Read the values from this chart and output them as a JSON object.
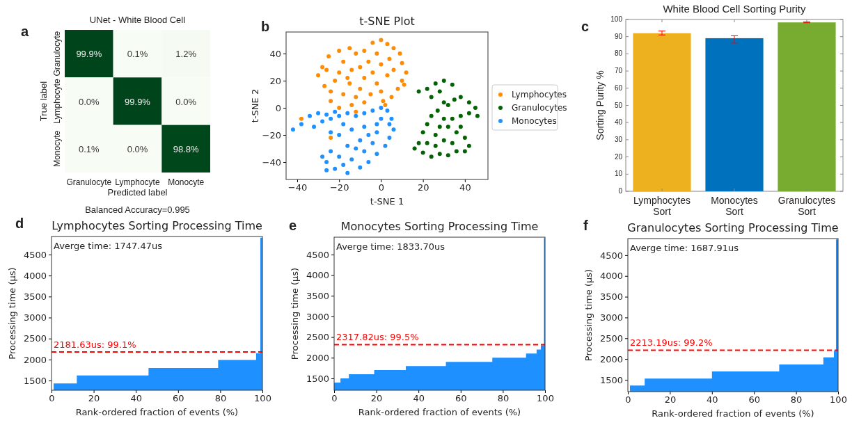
{
  "chart_data": [
    {
      "type": "heatmap",
      "title": "UNet - White Blood Cell",
      "xlabel": "Predicted label",
      "ylabel": "True label",
      "annotations": [
        "a",
        "Balanced Accuracy=0.995"
      ],
      "categories": [
        "Granulocyte",
        "Lymphocyte",
        "Monocyte"
      ],
      "y_categories": [
        "Granulocyte",
        "Lymphocyte",
        "Monocyte"
      ],
      "cells": [
        [
          99.9,
          0.1,
          1.2
        ],
        [
          0.0,
          99.9,
          0.0
        ],
        [
          0.1,
          0.0,
          98.8
        ]
      ],
      "cell_labels": [
        [
          "99.9%",
          "0.1%",
          "1.2%"
        ],
        [
          "0.0%",
          "99.9%",
          "0.0%"
        ],
        [
          "0.1%",
          "0.0%",
          "98.8%"
        ]
      ]
    },
    {
      "type": "scatter",
      "title": "t-SNE Plot",
      "xlabel": "t-SNE 1",
      "ylabel": "t-SNE 2",
      "annotations": [
        "b"
      ],
      "legend": "right",
      "marker": "circle",
      "xlim": [
        -45.3,
        51
      ],
      "ylim": [
        -52.8,
        55.9
      ],
      "xticks": [
        {
          "value": -40,
          "label": "−40"
        },
        {
          "value": -20,
          "label": "−20"
        },
        0,
        20,
        40
      ],
      "yticks": [
        {
          "value": -40,
          "label": "−40"
        },
        {
          "value": -20,
          "label": "−20"
        },
        0,
        20,
        40
      ],
      "series": [
        {
          "name": "Lymphocytes",
          "color": "#ff8c00",
          "x": [
            -28,
            -30,
            -27,
            -24,
            -22,
            -25,
            -20,
            -15,
            -12,
            -18,
            -14,
            -20,
            -10,
            -8,
            -15,
            -18,
            -12,
            -10,
            -5,
            -2,
            -4,
            -6,
            -8,
            -4,
            0,
            3,
            6,
            9,
            10,
            12,
            10,
            8,
            5,
            2,
            0,
            3,
            0,
            4,
            -2,
            -24,
            -20,
            -14,
            -8,
            -26,
            -16,
            6,
            11,
            1,
            -12,
            -38,
            -24
          ],
          "values": [
            30,
            24,
            16,
            12,
            20,
            38,
            42,
            44,
            40,
            34,
            28,
            26,
            30,
            22,
            18,
            10,
            8,
            14,
            10,
            18,
            26,
            34,
            42,
            48,
            50,
            47,
            44,
            40,
            33,
            26,
            20,
            14,
            8,
            2,
            12,
            24,
            32,
            36,
            40,
            5,
            0,
            2,
            4,
            28,
            22,
            28,
            17,
            5,
            -3,
            -8,
            -22
          ]
        },
        {
          "name": "Granulocytes",
          "color": "#006400",
          "x": [
            18,
            22,
            26,
            30,
            34,
            28,
            24,
            30,
            27,
            24,
            22,
            20,
            18,
            16,
            20,
            24,
            28,
            32,
            36,
            40,
            42,
            40,
            36,
            32,
            34,
            38,
            42,
            46,
            45,
            42,
            38,
            35,
            32,
            30,
            26,
            30,
            34,
            22,
            26,
            38,
            28
          ],
          "values": [
            12,
            14,
            18,
            20,
            17,
            12,
            8,
            4,
            -2,
            -6,
            -12,
            -18,
            -26,
            -30,
            -33,
            -36,
            -34,
            -35,
            -32,
            -32,
            -28,
            -22,
            -18,
            -14,
            -8,
            -6,
            -4,
            -6,
            0,
            4,
            8,
            6,
            2,
            -8,
            -20,
            -24,
            -26,
            -26,
            -28,
            -14,
            -14
          ]
        },
        {
          "name": "Monocytes",
          "color": "#1e90ff",
          "x": [
            -42,
            -38,
            -34,
            -30,
            -26,
            -22,
            -32,
            -28,
            -24,
            -20,
            -16,
            -12,
            -8,
            -4,
            0,
            3,
            5,
            6,
            4,
            2,
            -2,
            -6,
            -10,
            -16,
            -22,
            -26,
            -24,
            -20,
            -14,
            -8,
            -4,
            -10,
            -16,
            -20,
            -14,
            -8,
            -2,
            -6,
            -18,
            -24,
            0,
            -12,
            -26,
            -2,
            4,
            -18,
            -28
          ],
          "values": [
            -16,
            -12,
            -6,
            -4,
            -5,
            -3,
            -14,
            -10,
            -8,
            -6,
            -4,
            -6,
            -4,
            -2,
            0,
            -2,
            -8,
            -16,
            -22,
            -28,
            -34,
            -40,
            -44,
            -48,
            -45,
            -40,
            -32,
            -36,
            -38,
            -32,
            -26,
            -24,
            -28,
            -20,
            -16,
            -14,
            -12,
            -20,
            -12,
            -18,
            -8,
            -30,
            -46,
            -18,
            -12,
            -42,
            -36
          ]
        }
      ]
    },
    {
      "type": "bar",
      "title": "White Blood Cell Sorting Purity",
      "ylabel": "Sorting Purity %",
      "annotations": [
        "c"
      ],
      "categories": [
        "Lymphocytes Sort",
        "Monocytes Sort",
        "Granulocytes Sort"
      ],
      "values": [
        92,
        89.1,
        98.3
      ],
      "colors": [
        "#edb120",
        "#0072bd",
        "#77ac30"
      ],
      "errors": [
        [
          91,
          93.3
        ],
        [
          86.3,
          90.5
        ],
        [
          98.1,
          98.6
        ]
      ],
      "ylim": [
        0,
        100
      ],
      "yticks": [
        0,
        10,
        20,
        30,
        40,
        50,
        60,
        70,
        80,
        90,
        100
      ]
    },
    {
      "type": "area",
      "title": "Lymphocytes Sorting Processing Time",
      "xlabel": "Rank-ordered fraction of events (%)",
      "ylabel": "Processing time (μs)",
      "annotations": [
        "d",
        "Averge time: 1747.47us"
      ],
      "xlim": [
        0,
        100
      ],
      "ylim": [
        1270,
        4930
      ],
      "xticks": [
        0,
        20,
        40,
        60,
        80,
        100
      ],
      "yticks": [
        1500,
        2000,
        2500,
        3000,
        3500,
        4000,
        4500
      ],
      "series": [
        {
          "color": "#1e90ff",
          "x": [
            1,
            12,
            12,
            46,
            46,
            79,
            79,
            97,
            97,
            99,
            99,
            100
          ],
          "values": [
            1430,
            1430,
            1620,
            1620,
            1800,
            1800,
            1990,
            1990,
            2150,
            2150,
            4900,
            4900
          ]
        }
      ],
      "ref_lines": [
        {
          "axis": "y",
          "value": 2181.63,
          "label": "2181.63us: 99.1%",
          "color": "#ff0000",
          "line_style": "dashed"
        }
      ]
    },
    {
      "type": "area",
      "title": "Monocytes Sorting Processing Time",
      "xlabel": "Rank-ordered fraction of events (%)",
      "ylabel": "Processing time (μs)",
      "annotations": [
        "e",
        "Averge time: 1833.70us"
      ],
      "xlim": [
        0,
        100
      ],
      "ylim": [
        1213,
        4920
      ],
      "xticks": [
        0,
        20,
        40,
        60,
        80,
        100
      ],
      "yticks": [
        1500,
        2000,
        2500,
        3000,
        3500,
        4000,
        4500
      ],
      "series": [
        {
          "color": "#1e90ff",
          "x": [
            0,
            3,
            3,
            7,
            7,
            19,
            19,
            34,
            34,
            53,
            53,
            75,
            75,
            91,
            91,
            96,
            96,
            98,
            98,
            99.5,
            99.5,
            100
          ],
          "values": [
            1400,
            1400,
            1500,
            1500,
            1600,
            1600,
            1700,
            1700,
            1800,
            1800,
            1900,
            1900,
            2000,
            2000,
            2100,
            2100,
            2200,
            2200,
            2300,
            2300,
            4900,
            4900
          ]
        }
      ],
      "ref_lines": [
        {
          "axis": "y",
          "value": 2317.82,
          "label": "2317.82us: 99.5%",
          "color": "#ff0000",
          "line_style": "dashed"
        }
      ]
    },
    {
      "type": "area",
      "title": "Granulocytes Sorting Processing Time",
      "xlabel": "Rank-ordered fraction of events (%)",
      "ylabel": "Processing time (μs)",
      "annotations": [
        "f",
        "Averge time: 1687.91us"
      ],
      "xlim": [
        0,
        100
      ],
      "ylim": [
        1215,
        4900
      ],
      "xticks": [
        0,
        20,
        40,
        60,
        80,
        100
      ],
      "yticks": [
        1500,
        2000,
        2500,
        3000,
        3500,
        4000,
        4500
      ],
      "series": [
        {
          "color": "#1e90ff",
          "x": [
            1,
            8,
            8,
            40,
            40,
            72,
            72,
            93,
            93,
            98,
            98,
            99,
            99,
            100
          ],
          "values": [
            1360,
            1360,
            1530,
            1530,
            1700,
            1700,
            1870,
            1870,
            2040,
            2040,
            2200,
            2200,
            4880,
            4880
          ]
        }
      ],
      "ref_lines": [
        {
          "axis": "y",
          "value": 2213.19,
          "label": "2213.19us: 99.2%",
          "color": "#ff0000",
          "line_style": "dashed"
        }
      ]
    }
  ]
}
